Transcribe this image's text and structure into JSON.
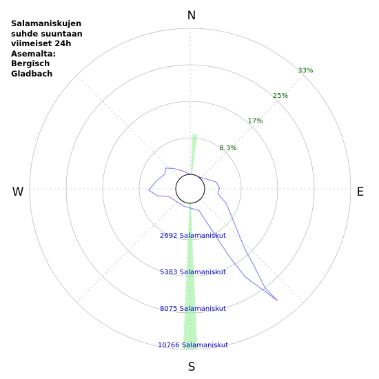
{
  "title_lines": [
    "Salamaniskujen",
    "suhde suuntaan",
    "viimeiset 24h",
    "Asemalta:",
    "Bergisch",
    "Gladbach"
  ],
  "chart_data": {
    "type": "polar",
    "compass_labels": {
      "N": "N",
      "E": "E",
      "S": "S",
      "W": "W"
    },
    "percent_rings": [
      {
        "value": 8.3,
        "label": "8.3%"
      },
      {
        "value": 17,
        "label": "17%"
      },
      {
        "value": 25,
        "label": "25%"
      },
      {
        "value": 33,
        "label": "33%"
      }
    ],
    "count_rings": [
      {
        "value": 2692,
        "label": "2692 Salamaniskut"
      },
      {
        "value": 5383,
        "label": "5383 Salamaniskut"
      },
      {
        "value": 8075,
        "label": "8075 Salamaniskut"
      },
      {
        "value": 10766,
        "label": "10766 Salamaniskut"
      }
    ],
    "percent_series": {
      "color": "#90ee90",
      "sectors": [
        {
          "direction_deg": 5,
          "width_deg": 5,
          "value": 9.0
        },
        {
          "direction_deg": 180,
          "width_deg": 5,
          "value": 33.0
        }
      ]
    },
    "count_series": {
      "color": "#0000ff",
      "points": [
        {
          "direction_deg": 0,
          "value": 0
        },
        {
          "direction_deg": 75,
          "value": 900
        },
        {
          "direction_deg": 88,
          "value": 1100
        },
        {
          "direction_deg": 100,
          "value": 1000
        },
        {
          "direction_deg": 112,
          "value": 1800
        },
        {
          "direction_deg": 138,
          "value": 5000
        },
        {
          "direction_deg": 140,
          "value": 6100
        },
        {
          "direction_deg": 143,
          "value": 8200
        },
        {
          "direction_deg": 142,
          "value": 9400
        },
        {
          "direction_deg": 148,
          "value": 6600
        },
        {
          "direction_deg": 150,
          "value": 4700
        },
        {
          "direction_deg": 152,
          "value": 2600
        },
        {
          "direction_deg": 158,
          "value": 650
        },
        {
          "direction_deg": 200,
          "value": 300
        },
        {
          "direction_deg": 250,
          "value": 600
        },
        {
          "direction_deg": 258,
          "value": 1400
        },
        {
          "direction_deg": 268,
          "value": 2000
        },
        {
          "direction_deg": 283,
          "value": 1500
        },
        {
          "direction_deg": 300,
          "value": 1100
        },
        {
          "direction_deg": 310,
          "value": 1300
        },
        {
          "direction_deg": 320,
          "value": 900
        },
        {
          "direction_deg": 340,
          "value": 300
        }
      ]
    }
  }
}
